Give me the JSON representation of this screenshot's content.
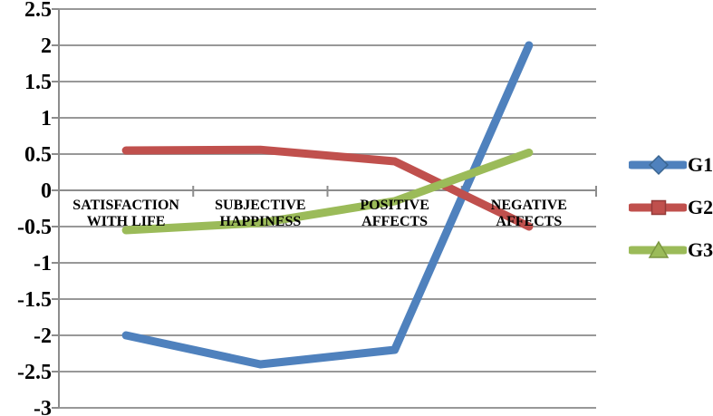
{
  "chart_data": {
    "type": "line",
    "title": "",
    "xlabel": "",
    "ylabel": "",
    "categories": [
      [
        "SATISFACTION",
        "WITH LIFE"
      ],
      [
        "SUBJECTIVE",
        "HAPPINESS"
      ],
      [
        "POSITIVE",
        "AFFECTS"
      ],
      [
        "NEGATIVE",
        "AFFECTS"
      ]
    ],
    "series": [
      {
        "name": "G1",
        "color": "#4F81BD",
        "marker": "diamond",
        "marker_outline": "#3A6590",
        "values": [
          -2.0,
          -2.4,
          -2.2,
          2.0
        ]
      },
      {
        "name": "G2",
        "color": "#C0504D",
        "marker": "square",
        "marker_outline": "#943B39",
        "values": [
          0.55,
          0.56,
          0.4,
          -0.5
        ]
      },
      {
        "name": "G3",
        "color": "#9BBB59",
        "marker": "triangle",
        "marker_outline": "#7A9640",
        "values": [
          -0.55,
          -0.45,
          -0.15,
          0.52
        ]
      }
    ],
    "y_axis": {
      "min": -3,
      "max": 2.5,
      "step": 0.5,
      "tick_labels": [
        "2.5",
        "2",
        "1.5",
        "1",
        "0.5",
        "0",
        "-0.5",
        "-1",
        "-1.5",
        "-2",
        "-2.5",
        "-3"
      ]
    },
    "grid": true,
    "legend_position": "right",
    "legend_labels": [
      "G1",
      "G2",
      "G3"
    ],
    "colors": {
      "gridline": "#989898",
      "axis": "#8C8C8C",
      "text": "#000000",
      "background": "#FFFFFF"
    }
  }
}
